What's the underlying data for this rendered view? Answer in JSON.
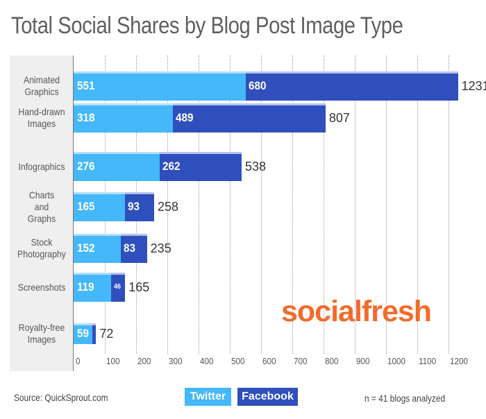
{
  "title": "Total Social Shares by Blog Post Image Type",
  "brand": "socialfresh",
  "footer": {
    "source": "Source: QuickSprout.com",
    "note": "n = 41 blogs analyzed"
  },
  "legend": {
    "twitter": "Twitter",
    "facebook": "Facebook"
  },
  "colors": {
    "twitter": "#44b8f8",
    "facebook": "#2f4fbd",
    "brand": "#f26b2b",
    "title": "#5f5f60"
  },
  "axis": {
    "ticks": [
      "0",
      "100",
      "200",
      "300",
      "400",
      "500",
      "600",
      "700",
      "800",
      "900",
      "1000",
      "1100",
      "1200"
    ]
  },
  "rows": [
    {
      "label_lines": [
        "Animated",
        "Graphics"
      ],
      "twitter": "551",
      "facebook": "680",
      "total": "1231"
    },
    {
      "label_lines": [
        "Hand-drawn",
        "Images"
      ],
      "twitter": "318",
      "facebook": "489",
      "total": "807"
    },
    {
      "label_lines": [
        "Infographics"
      ],
      "twitter": "276",
      "facebook": "262",
      "total": "538"
    },
    {
      "label_lines": [
        "Charts",
        "and",
        "Graphs"
      ],
      "twitter": "165",
      "facebook": "93",
      "total": "258"
    },
    {
      "label_lines": [
        "Stock",
        "Photography"
      ],
      "twitter": "152",
      "facebook": "83",
      "total": "235"
    },
    {
      "label_lines": [
        "Screenshots"
      ],
      "twitter": "119",
      "facebook": "46",
      "total": "165"
    },
    {
      "label_lines": [
        "Royalty-free",
        "Images"
      ],
      "twitter": "59",
      "facebook": "13",
      "total": "72"
    }
  ],
  "chart_data": {
    "type": "bar",
    "orientation": "horizontal",
    "stacked": true,
    "title": "Total Social Shares by Blog Post Image Type",
    "categories": [
      "Animated Graphics",
      "Hand-drawn Images",
      "Infographics",
      "Charts and Graphs",
      "Stock Photography",
      "Screenshots",
      "Royalty-free Images"
    ],
    "series": [
      {
        "name": "Twitter",
        "color": "#44b8f8",
        "values": [
          551,
          318,
          276,
          165,
          152,
          119,
          59
        ]
      },
      {
        "name": "Facebook",
        "color": "#2f4fbd",
        "values": [
          680,
          489,
          262,
          93,
          83,
          46,
          13
        ]
      }
    ],
    "totals": [
      1231,
      807,
      538,
      258,
      235,
      165,
      72
    ],
    "xlabel": "",
    "ylabel": "",
    "xlim": [
      0,
      1200
    ],
    "xticks": [
      0,
      100,
      200,
      300,
      400,
      500,
      600,
      700,
      800,
      900,
      1000,
      1100,
      1200
    ],
    "grid": "vertical dotted",
    "legend": {
      "entries": [
        "Twitter",
        "Facebook"
      ],
      "position": "bottom-center"
    },
    "annotations": [
      "Source: QuickSprout.com",
      "n = 41 blogs analyzed",
      "socialfresh"
    ]
  }
}
